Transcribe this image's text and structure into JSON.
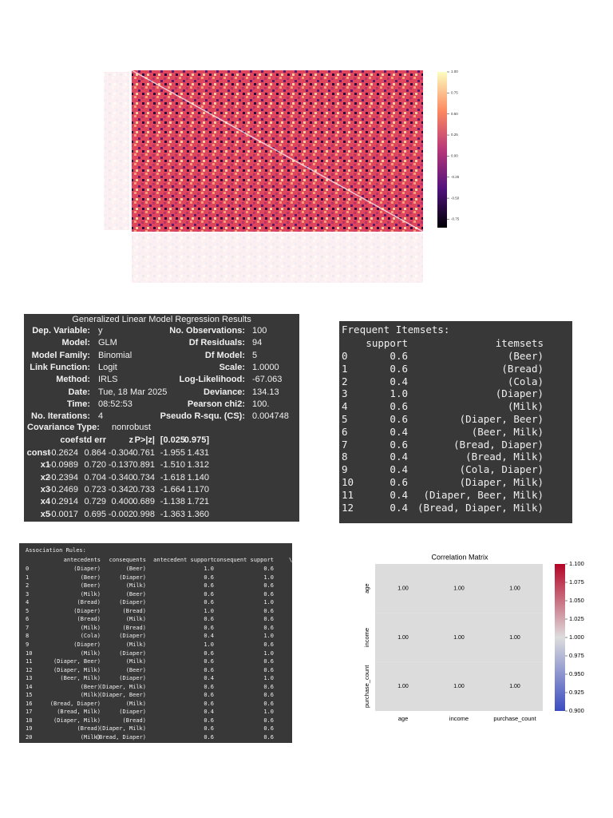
{
  "heatmap": {
    "colorbar_lim": [
      -0.85,
      1.0
    ],
    "colorbar_ticks": [
      {
        "value": 1,
        "label": "1.00"
      },
      {
        "value": 0.75,
        "label": "0.75"
      },
      {
        "value": 0.5,
        "label": "0.50"
      },
      {
        "value": 0.25,
        "label": "0.25"
      },
      {
        "value": 0,
        "label": "0.00"
      },
      {
        "value": -0.25,
        "label": "-0.25"
      },
      {
        "value": -0.5,
        "label": "-0.50"
      },
      {
        "value": -0.75,
        "label": "-0.75"
      }
    ]
  },
  "glm": {
    "title": "Generalized Linear Model Regression Results",
    "summary": [
      [
        "Dep. Variable:",
        "y",
        "No. Observations:",
        "100"
      ],
      [
        "Model:",
        "GLM",
        "Df Residuals:",
        "94"
      ],
      [
        "Model Family:",
        "Binomial",
        "Df Model:",
        "5"
      ],
      [
        "Link Function:",
        "Logit",
        "Scale:",
        "1.0000"
      ],
      [
        "Method:",
        "IRLS",
        "Log-Likelihood:",
        "-67.063"
      ],
      [
        "Date:",
        "Tue, 18 Mar 2025",
        "Deviance:",
        "134.13"
      ],
      [
        "Time:",
        "08:52:53",
        "Pearson chi2:",
        "100."
      ],
      [
        "No. Iterations:",
        "4",
        "Pseudo R-squ. (CS):",
        "0.004748"
      ]
    ],
    "covariance": [
      "Covariance Type:",
      "nonrobust"
    ],
    "coef_header": [
      "coef",
      "std err",
      "z",
      "P>|z|",
      "[0.025",
      "0.975]"
    ],
    "coef_rows": [
      [
        "const",
        "-0.2624",
        "0.864",
        "-0.304",
        "0.761",
        "-1.955",
        "1.431"
      ],
      [
        "x1",
        "-0.0989",
        "0.720",
        "-0.137",
        "0.891",
        "-1.510",
        "1.312"
      ],
      [
        "x2",
        "-0.2394",
        "0.704",
        "-0.340",
        "0.734",
        "-1.618",
        "1.140"
      ],
      [
        "x3",
        "-0.2469",
        "0.723",
        "-0.342",
        "0.733",
        "-1.664",
        "1.170"
      ],
      [
        "x4",
        "0.2914",
        "0.729",
        "0.400",
        "0.689",
        "-1.138",
        "1.721"
      ],
      [
        "x5",
        "-0.0017",
        "0.695",
        "-0.002",
        "0.998",
        "-1.363",
        "1.360"
      ]
    ]
  },
  "itemsets": {
    "title": "Frequent Itemsets:",
    "header": [
      "support",
      "itemsets"
    ],
    "rows": [
      [
        "0",
        "0.6",
        "(Beer)"
      ],
      [
        "1",
        "0.6",
        "(Bread)"
      ],
      [
        "2",
        "0.4",
        "(Cola)"
      ],
      [
        "3",
        "1.0",
        "(Diaper)"
      ],
      [
        "4",
        "0.6",
        "(Milk)"
      ],
      [
        "5",
        "0.6",
        "(Diaper, Beer)"
      ],
      [
        "6",
        "0.4",
        "(Beer, Milk)"
      ],
      [
        "7",
        "0.6",
        "(Bread, Diaper)"
      ],
      [
        "8",
        "0.4",
        "(Bread, Milk)"
      ],
      [
        "9",
        "0.4",
        "(Cola, Diaper)"
      ],
      [
        "10",
        "0.6",
        "(Diaper, Milk)"
      ],
      [
        "11",
        "0.4",
        "(Diaper, Beer, Milk)"
      ],
      [
        "12",
        "0.4",
        "(Bread, Diaper, Milk)"
      ]
    ]
  },
  "rules": {
    "title": "Association Rules:",
    "header": [
      "antecedents",
      "consequents",
      "antecedent support",
      "consequent support",
      "\\"
    ],
    "rows": [
      [
        "0",
        "(Diaper)",
        "(Beer)",
        "1.0",
        "0.6"
      ],
      [
        "1",
        "(Beer)",
        "(Diaper)",
        "0.6",
        "1.0"
      ],
      [
        "2",
        "(Beer)",
        "(Milk)",
        "0.6",
        "0.6"
      ],
      [
        "3",
        "(Milk)",
        "(Beer)",
        "0.6",
        "0.6"
      ],
      [
        "4",
        "(Bread)",
        "(Diaper)",
        "0.6",
        "1.0"
      ],
      [
        "5",
        "(Diaper)",
        "(Bread)",
        "1.0",
        "0.6"
      ],
      [
        "6",
        "(Bread)",
        "(Milk)",
        "0.6",
        "0.6"
      ],
      [
        "7",
        "(Milk)",
        "(Bread)",
        "0.6",
        "0.6"
      ],
      [
        "8",
        "(Cola)",
        "(Diaper)",
        "0.4",
        "1.0"
      ],
      [
        "9",
        "(Diaper)",
        "(Milk)",
        "1.0",
        "0.6"
      ],
      [
        "10",
        "(Milk)",
        "(Diaper)",
        "0.6",
        "1.0"
      ],
      [
        "11",
        "(Diaper, Beer)",
        "(Milk)",
        "0.6",
        "0.6"
      ],
      [
        "12",
        "(Diaper, Milk)",
        "(Beer)",
        "0.6",
        "0.6"
      ],
      [
        "13",
        "(Beer, Milk)",
        "(Diaper)",
        "0.4",
        "1.0"
      ],
      [
        "14",
        "(Beer)",
        "(Diaper, Milk)",
        "0.6",
        "0.6"
      ],
      [
        "15",
        "(Milk)",
        "(Diaper, Beer)",
        "0.6",
        "0.6"
      ],
      [
        "16",
        "(Bread, Diaper)",
        "(Milk)",
        "0.6",
        "0.6"
      ],
      [
        "17",
        "(Bread, Milk)",
        "(Diaper)",
        "0.4",
        "1.0"
      ],
      [
        "18",
        "(Diaper, Milk)",
        "(Bread)",
        "0.6",
        "0.6"
      ],
      [
        "19",
        "(Bread)",
        "(Diaper, Milk)",
        "0.6",
        "0.6"
      ],
      [
        "20",
        "(Milk)",
        "(Bread, Diaper)",
        "0.6",
        "0.6"
      ]
    ]
  },
  "chart_data": {
    "type": "heatmap",
    "title": "Correlation Matrix",
    "x": [
      "age",
      "income",
      "purchase_count"
    ],
    "y": [
      "age",
      "income",
      "purchase_count"
    ],
    "values": [
      [
        1,
        1,
        1
      ],
      [
        1,
        1,
        1
      ],
      [
        1,
        1,
        1
      ]
    ],
    "value_labels": [
      [
        "1.00",
        "1.00",
        "1.00"
      ],
      [
        "1.00",
        "1.00",
        "1.00"
      ],
      [
        "1.00",
        "1.00",
        "1.00"
      ]
    ],
    "cell_color": "#dcdcdc",
    "colormap": [
      "#3b4cc0",
      "#dddddd",
      "#b40426"
    ],
    "colorbar_lim": [
      0.9,
      1.1
    ],
    "colorbar_ticks": [
      {
        "value": 1.1,
        "label": "1.100"
      },
      {
        "value": 1.075,
        "label": "1.075"
      },
      {
        "value": 1.05,
        "label": "1.050"
      },
      {
        "value": 1.025,
        "label": "1.025"
      },
      {
        "value": 1.0,
        "label": "1.000"
      },
      {
        "value": 0.975,
        "label": "0.975"
      },
      {
        "value": 0.95,
        "label": "0.950"
      },
      {
        "value": 0.925,
        "label": "0.925"
      },
      {
        "value": 0.9,
        "label": "0.900"
      }
    ]
  }
}
